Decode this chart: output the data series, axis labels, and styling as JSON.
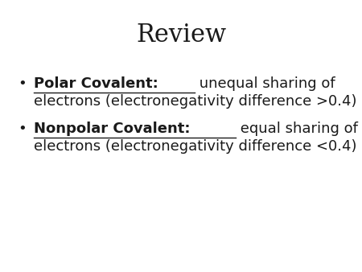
{
  "title": "Review",
  "title_fontsize": 22,
  "background_color": "#ffffff",
  "text_color": "#1a1a1a",
  "bullet1_bold": "Polar Covalent:",
  "bullet1_normal": " unequal sharing of\nelectrons (electronegativity difference >0.4)",
  "bullet2_bold": "Nonpolar Covalent:",
  "bullet2_normal": " equal sharing of\nelectrons (electronegativity difference <0.4)",
  "bullet_fontsize": 13,
  "bullet_symbol": "•",
  "title_font": "DejaVu Serif",
  "body_font": "DejaVu Sans"
}
